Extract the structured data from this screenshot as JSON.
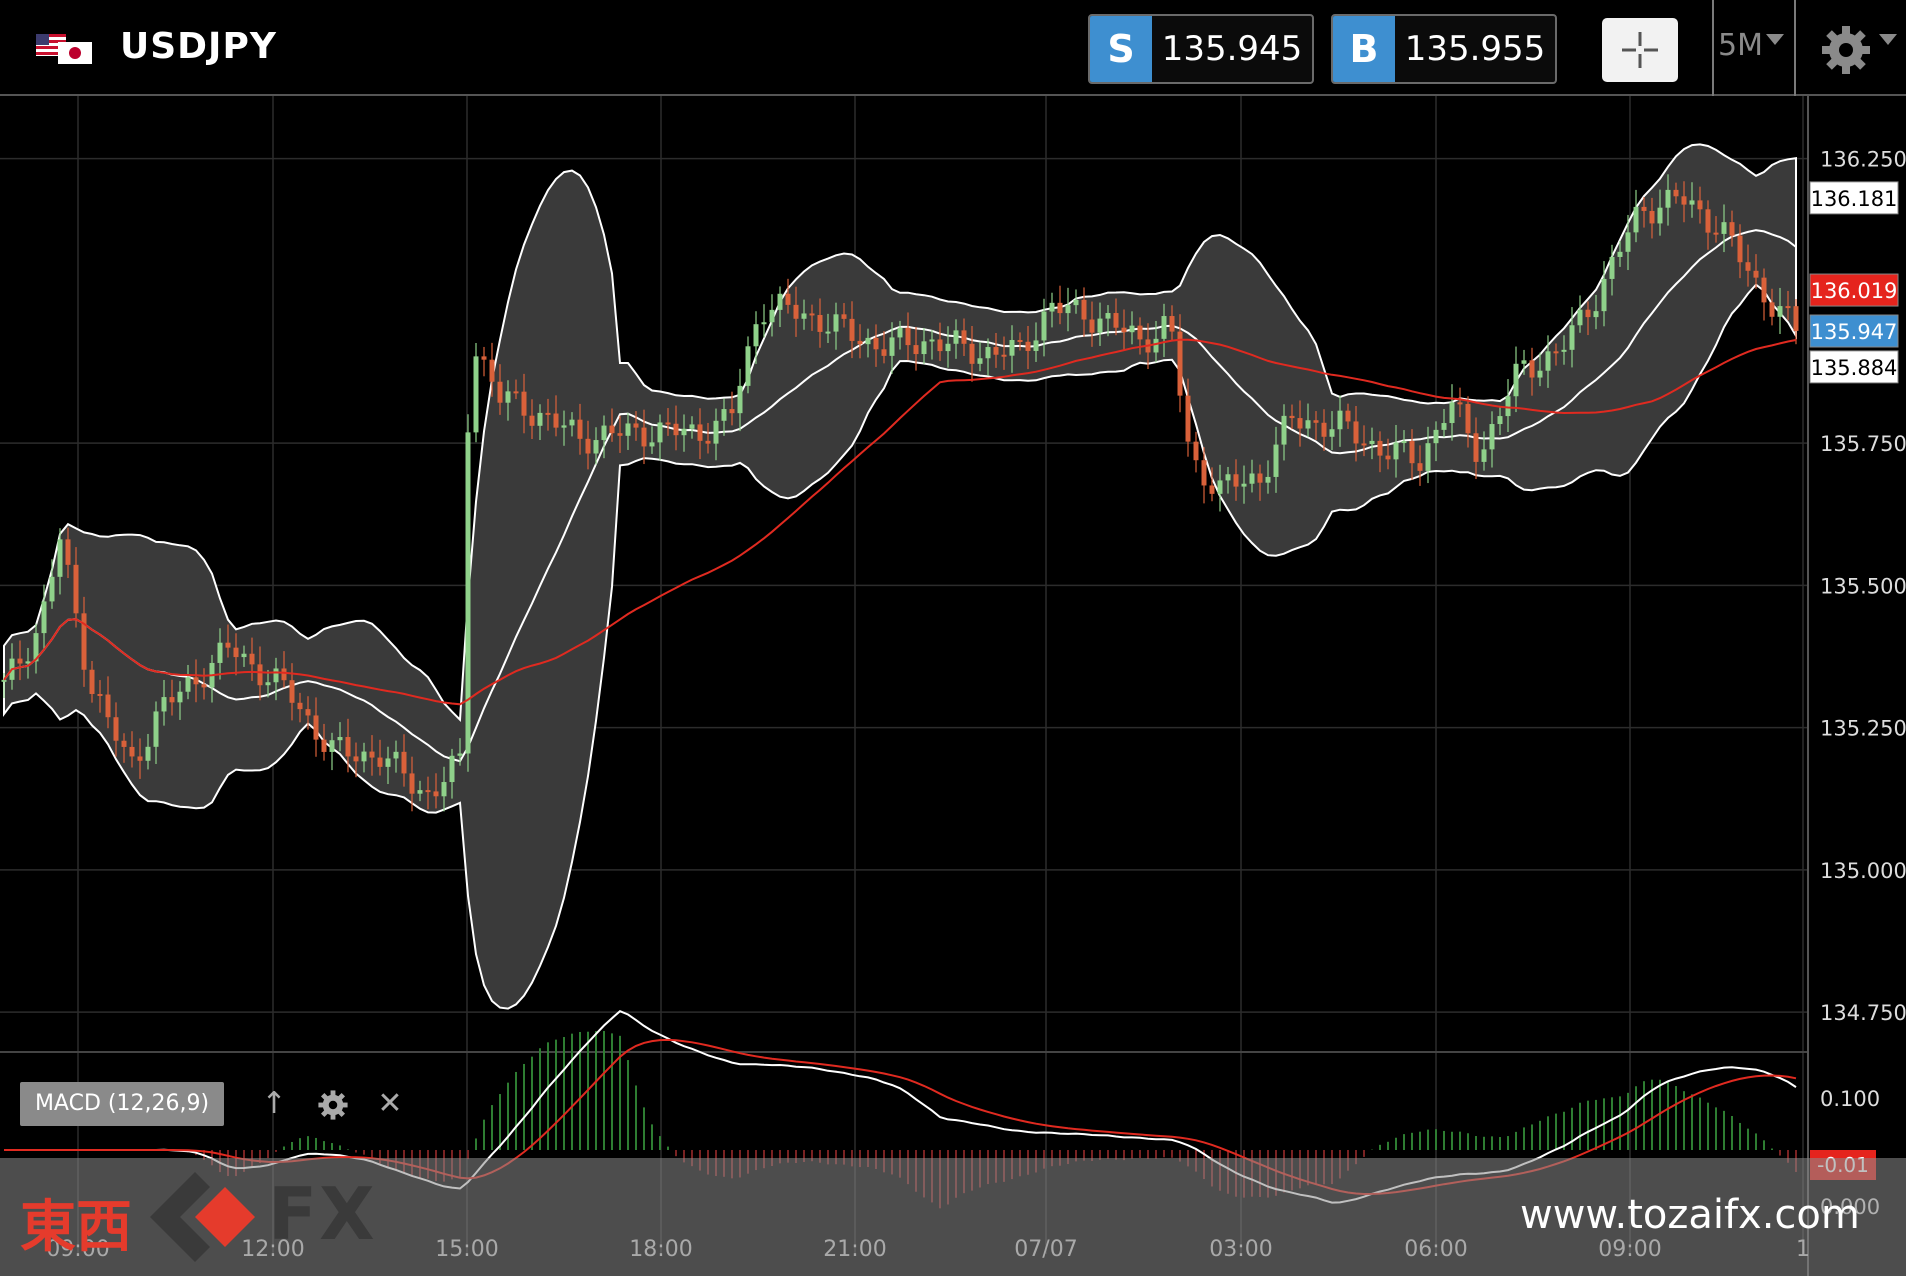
{
  "header": {
    "symbol": "USDJPY",
    "sell_label": "S",
    "sell_price": "135.945",
    "buy_label": "B",
    "buy_price": "135.955",
    "timeframe": "5M"
  },
  "macd": {
    "label": "MACD (12,26,9)",
    "up_icon": "↑",
    "close_icon": "✕",
    "levels": [
      "0.100",
      "0.000"
    ],
    "current": "-0.01"
  },
  "colors": {
    "accent_blue": "#3e8fd0",
    "red_marker": "#e5241d",
    "ma_red": "#e02a20",
    "candle_up": "#8fd18a",
    "candle_down": "#d9613a"
  },
  "chart_data": {
    "type": "candlestick",
    "ylim": [
      134.68,
      136.36
    ],
    "y_ticks": [
      "136.250",
      "135.750",
      "135.500",
      "135.250",
      "135.000",
      "134.750"
    ],
    "x_ticks": [
      "09:00",
      "12:00",
      "15:00",
      "18:00",
      "21:00",
      "07/07",
      "03:00",
      "06:00",
      "09:00",
      "1"
    ],
    "markers": [
      {
        "label": "136.181",
        "value": 136.181,
        "style": "white"
      },
      {
        "label": "136.019",
        "value": 136.019,
        "style": "red"
      },
      {
        "label": "135.947",
        "value": 135.947,
        "style": "blue"
      },
      {
        "label": "135.884",
        "value": 135.884,
        "style": "white"
      }
    ],
    "indicators": [
      "Bollinger Bands",
      "Moving Average",
      "MACD (12,26,9)"
    ]
  },
  "watermark": {
    "chinese": "東西",
    "fx": "FX",
    "url": "www.tozaifx.com"
  }
}
